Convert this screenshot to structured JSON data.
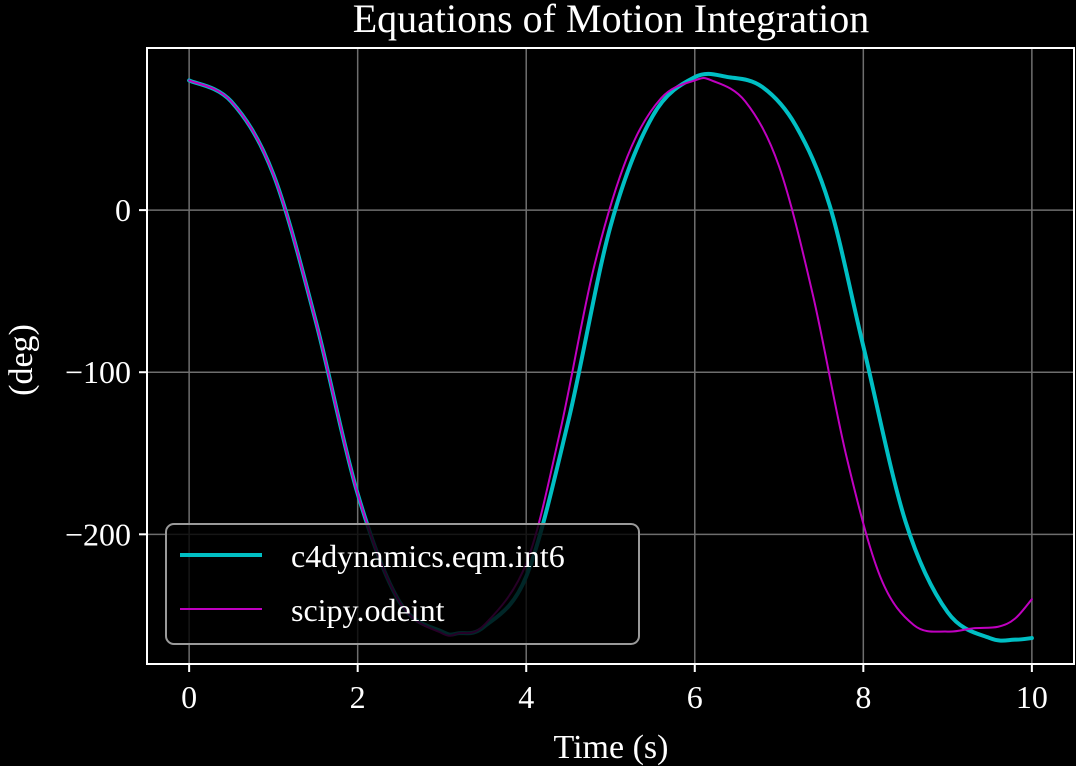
{
  "chart_data": {
    "type": "line",
    "title": "Equations of Motion Integration",
    "xlabel": "Time (s)",
    "ylabel": "(deg)",
    "xlim": [
      -0.5,
      10.5
    ],
    "ylim": [
      -280,
      100
    ],
    "xticks": [
      0,
      2,
      4,
      6,
      8,
      10
    ],
    "yticks": [
      0,
      -100,
      -200
    ],
    "xtick_labels": [
      "0",
      "2",
      "4",
      "6",
      "8",
      "10"
    ],
    "ytick_labels": [
      "0",
      "−100",
      "−200"
    ],
    "grid": true,
    "legend_position": "lower-left",
    "background": "#000000",
    "series": [
      {
        "name": "c4dynamics.eqm.int6",
        "color": "#00bfc4",
        "x": [
          0,
          0.5,
          1.0,
          1.5,
          2.0,
          2.5,
          3.0,
          3.2,
          3.5,
          4.0,
          4.5,
          5.0,
          5.5,
          6.0,
          6.4,
          6.8,
          7.2,
          7.6,
          8.0,
          8.5,
          9.0,
          9.5,
          9.8,
          10.0
        ],
        "y": [
          80,
          67,
          22,
          -68,
          -175,
          -242,
          -260,
          -261,
          -257,
          -226,
          -130,
          -10,
          58,
          82,
          82,
          76,
          52,
          3,
          -84,
          -192,
          -248,
          -264,
          -265,
          -264
        ]
      },
      {
        "name": "scipy.odeint",
        "color": "#c000c0",
        "x": [
          0,
          0.5,
          1.0,
          1.5,
          2.0,
          2.5,
          3.0,
          3.2,
          3.5,
          4.0,
          4.4,
          4.8,
          5.2,
          5.6,
          6.0,
          6.2,
          6.6,
          7.0,
          7.4,
          7.8,
          8.2,
          8.6,
          9.0,
          9.3,
          9.6,
          9.8,
          10.0
        ],
        "y": [
          80,
          67,
          22,
          -68,
          -175,
          -242,
          -261,
          -261,
          -256,
          -218,
          -137,
          -36,
          33,
          69,
          80,
          80,
          67,
          27,
          -52,
          -152,
          -226,
          -256,
          -260,
          -258,
          -257,
          -252,
          -240
        ]
      }
    ]
  }
}
